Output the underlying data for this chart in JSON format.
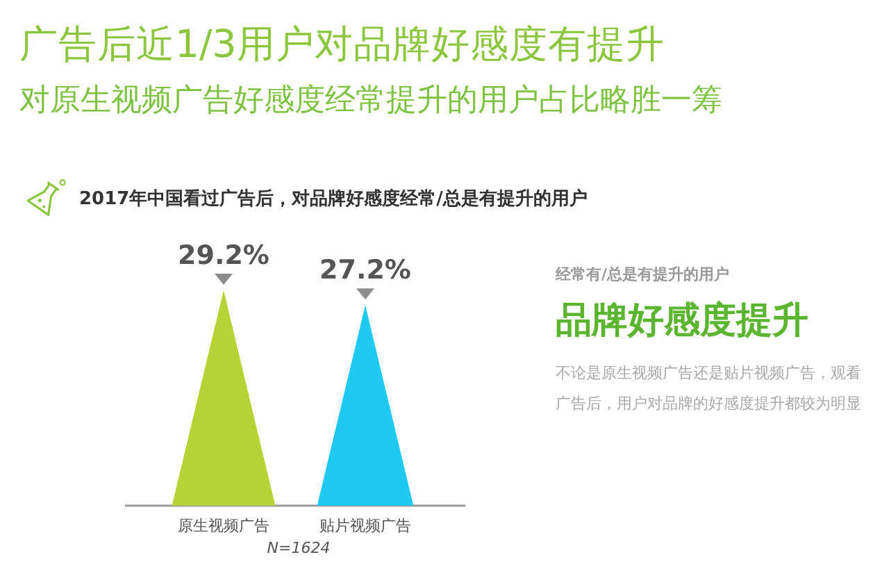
{
  "chart_data": {
    "type": "bar",
    "title": "广告后近1/3用户对品牌好感度有提升",
    "subtitle": "对原生视频广告好感度经常提升的用户占比略胜一筹",
    "categories": [
      "原生视频广告",
      "贴片视频广告"
    ],
    "values": [
      29.2,
      27.2
    ],
    "colors": [
      "#b5d334",
      "#1ec9f2"
    ],
    "value_labels": [
      "29.2%",
      "27.2%"
    ],
    "annotations": [
      "2017年中国看过广告后，对品牌好感度经常/总是有提升的用户",
      "N=1624",
      "经常有/总是有提升的用户",
      "品牌好感度提升",
      "不论是原生视频广告还是贴片视频广告，观看广告后，用户对品牌的好感度提升都较为明显"
    ]
  }
}
